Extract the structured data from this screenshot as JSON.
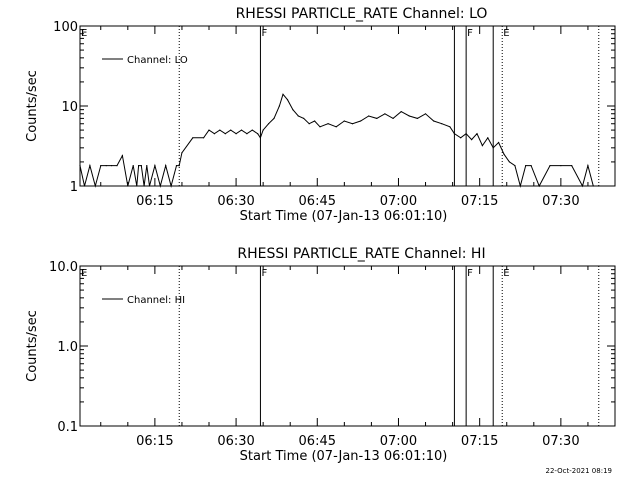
{
  "timestamp": "22-Oct-2021 08:19",
  "chart_data": [
    {
      "type": "line",
      "title": "RHESSI PARTICLE_RATE Channel: LO",
      "xlabel": "Start Time (07-Jan-13 06:01:10)",
      "ylabel": "Counts/sec",
      "y_scale": "log",
      "ylim": [
        1,
        100
      ],
      "y_ticks": [
        "1",
        "10",
        "100"
      ],
      "xlim": [
        "06:01:10",
        "07:40:00"
      ],
      "x_ticks": [
        "06:15",
        "06:30",
        "06:45",
        "07:00",
        "07:15",
        "07:30"
      ],
      "legend": {
        "position": "top-left",
        "entries": [
          "Channel: LO"
        ]
      },
      "markers": [
        {
          "label": "E",
          "time": "06:01:10",
          "style": "dotted"
        },
        {
          "label": "",
          "time": "06:19:30",
          "style": "dotted"
        },
        {
          "label": "F",
          "time": "06:34:30",
          "style": "solid"
        },
        {
          "label": "",
          "time": "07:10:20",
          "style": "solid"
        },
        {
          "label": "F",
          "time": "07:12:30",
          "style": "solid"
        },
        {
          "label": "",
          "time": "07:17:30",
          "style": "solid"
        },
        {
          "label": "E",
          "time": "07:19:10",
          "style": "dotted"
        },
        {
          "label": "",
          "time": "07:37:00",
          "style": "dotted"
        }
      ],
      "series": [
        {
          "name": "Channel: LO",
          "x": [
            "06:01:10",
            "06:02:00",
            "06:03:00",
            "06:04:00",
            "06:05:00",
            "06:06:00",
            "06:07:00",
            "06:08:00",
            "06:09:00",
            "06:10:00",
            "06:11:00",
            "06:11:40",
            "06:12:00",
            "06:12:30",
            "06:13:00",
            "06:13:30",
            "06:14:00",
            "06:15:00",
            "06:16:00",
            "06:17:00",
            "06:18:00",
            "06:19:00",
            "06:19:30",
            "06:20:00",
            "06:22:00",
            "06:24:00",
            "06:25:00",
            "06:26:00",
            "06:27:00",
            "06:28:00",
            "06:29:00",
            "06:30:00",
            "06:31:00",
            "06:32:00",
            "06:33:00",
            "06:34:00",
            "06:34:30",
            "06:35:00",
            "06:36:00",
            "06:37:00",
            "06:38:00",
            "06:38:40",
            "06:39:30",
            "06:40:30",
            "06:41:30",
            "06:42:30",
            "06:43:30",
            "06:44:30",
            "06:45:30",
            "06:47:00",
            "06:48:30",
            "06:50:00",
            "06:51:30",
            "06:53:00",
            "06:54:30",
            "06:56:00",
            "06:57:30",
            "06:59:00",
            "07:00:30",
            "07:02:00",
            "07:03:30",
            "07:05:00",
            "07:06:30",
            "07:08:00",
            "07:09:30",
            "07:10:20",
            "07:11:30",
            "07:12:30",
            "07:13:30",
            "07:14:30",
            "07:15:30",
            "07:16:30",
            "07:17:30",
            "07:18:30",
            "07:19:30",
            "07:20:30",
            "07:21:30",
            "07:22:30",
            "07:23:30",
            "07:24:30",
            "07:26:00",
            "07:28:00",
            "07:30:00",
            "07:32:00",
            "07:34:00",
            "07:35:00",
            "07:36:00",
            "07:37:00"
          ],
          "y": [
            1.8,
            1.0,
            1.8,
            1.0,
            1.8,
            1.8,
            1.8,
            1.8,
            2.4,
            1.0,
            1.8,
            1.0,
            1.8,
            1.8,
            1.0,
            1.8,
            1.0,
            1.8,
            1.0,
            1.8,
            1.0,
            1.8,
            1.8,
            2.6,
            4.0,
            4.0,
            5.0,
            4.5,
            5.0,
            4.5,
            5.0,
            4.5,
            5.0,
            4.5,
            5.0,
            4.5,
            4.0,
            5.0,
            6.0,
            7.0,
            10.0,
            14.0,
            12.0,
            9.0,
            7.5,
            7.0,
            6.0,
            6.5,
            5.5,
            6.0,
            5.5,
            6.5,
            6.0,
            6.5,
            7.5,
            7.0,
            8.0,
            7.0,
            8.5,
            7.5,
            7.0,
            8.0,
            6.5,
            6.0,
            5.5,
            4.5,
            4.0,
            4.5,
            3.8,
            4.5,
            3.2,
            4.0,
            3.0,
            3.5,
            2.5,
            2.0,
            1.8,
            1.0,
            1.8,
            1.8,
            1.0,
            1.8,
            1.8,
            1.8,
            1.0,
            1.8,
            1.0,
            1.0
          ]
        }
      ]
    },
    {
      "type": "line",
      "title": "RHESSI PARTICLE_RATE Channel: HI",
      "xlabel": "Start Time (07-Jan-13 06:01:10)",
      "ylabel": "Counts/sec",
      "y_scale": "log",
      "ylim": [
        0.1,
        10
      ],
      "y_ticks": [
        "0.1",
        "1.0",
        "10.0"
      ],
      "xlim": [
        "06:01:10",
        "07:40:00"
      ],
      "x_ticks": [
        "06:15",
        "06:30",
        "06:45",
        "07:00",
        "07:15",
        "07:30"
      ],
      "legend": {
        "position": "top-left",
        "entries": [
          "Channel: HI"
        ]
      },
      "markers": [
        {
          "label": "E",
          "time": "06:01:10",
          "style": "dotted"
        },
        {
          "label": "",
          "time": "06:19:30",
          "style": "dotted"
        },
        {
          "label": "F",
          "time": "06:34:30",
          "style": "solid"
        },
        {
          "label": "",
          "time": "07:10:20",
          "style": "solid"
        },
        {
          "label": "F",
          "time": "07:12:30",
          "style": "solid"
        },
        {
          "label": "",
          "time": "07:17:30",
          "style": "solid"
        },
        {
          "label": "E",
          "time": "07:19:10",
          "style": "dotted"
        },
        {
          "label": "",
          "time": "07:37:00",
          "style": "dotted"
        }
      ],
      "series": [
        {
          "name": "Channel: HI",
          "x": [],
          "y": []
        }
      ]
    }
  ]
}
